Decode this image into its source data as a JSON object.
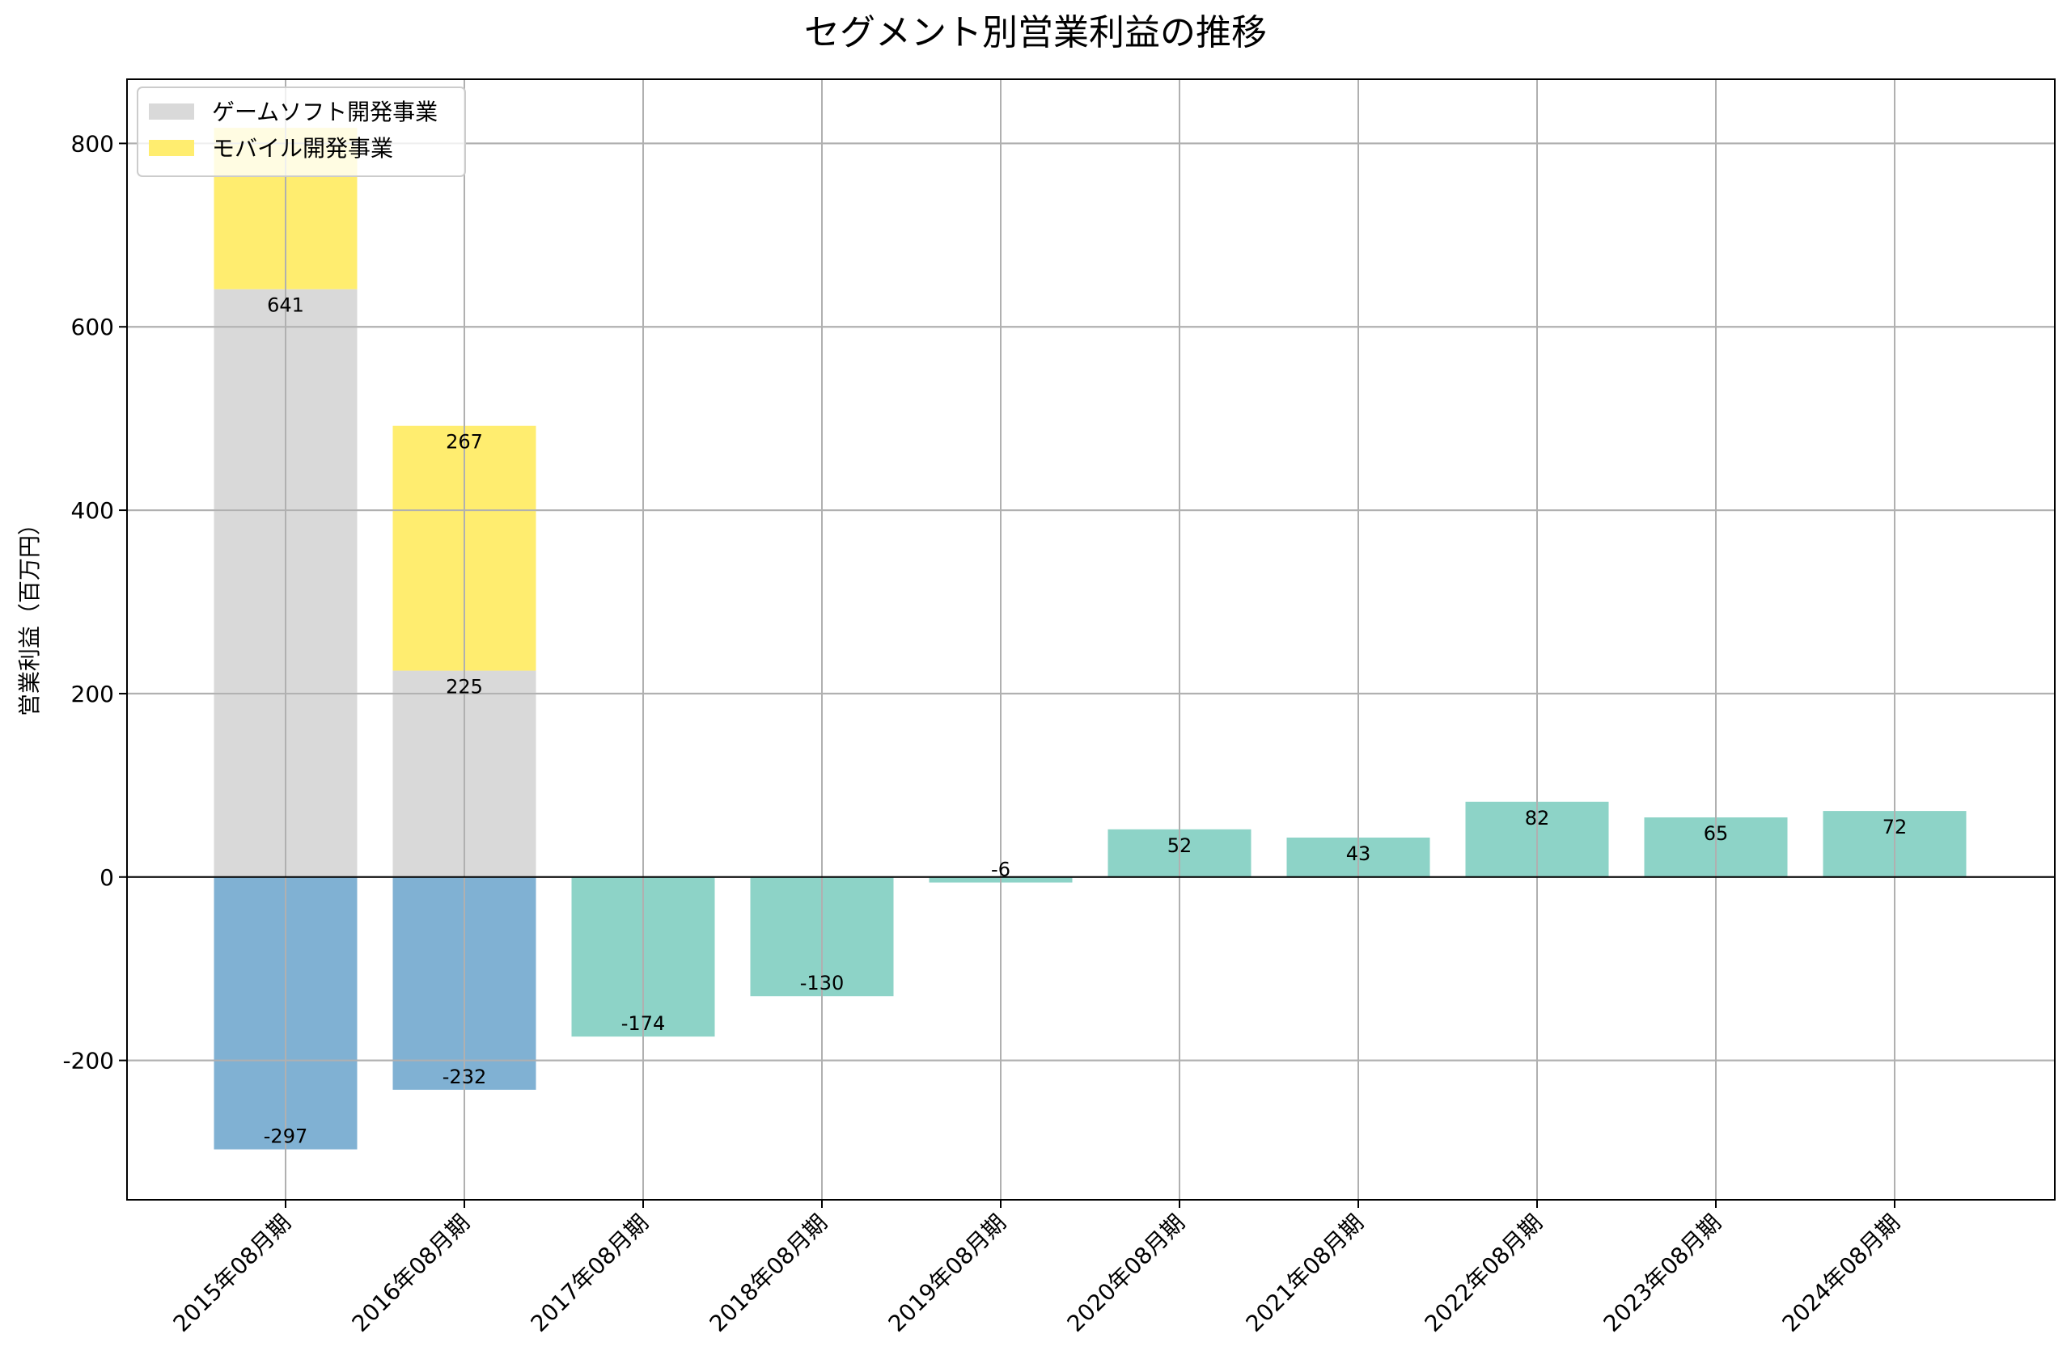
{
  "chart_data": {
    "type": "bar",
    "stacked": true,
    "title": "セグメント別営業利益の推移",
    "xlabel": "",
    "ylabel": "営業利益（百万円）",
    "ylim": [
      -352,
      870
    ],
    "yticks": [
      -200,
      0,
      200,
      400,
      600,
      800
    ],
    "grid": true,
    "legend_position": "top-left",
    "categories": [
      "2015年08月期",
      "2016年08月期",
      "2017年08月期",
      "2018年08月期",
      "2019年08月期",
      "2020年08月期",
      "2021年08月期",
      "2022年08月期",
      "2023年08月期",
      "2024年08月期"
    ],
    "series": [
      {
        "name": "ゲームソフト開発事業",
        "color": "#d9d9d9",
        "values": [
          641,
          225,
          null,
          null,
          null,
          null,
          null,
          null,
          null,
          null
        ],
        "labels": [
          "641",
          "225",
          "",
          "",
          "",
          "",
          "",
          "",
          "",
          ""
        ]
      },
      {
        "name": "モバイル開発事業",
        "color": "#ffed6f",
        "values": [
          176,
          267,
          null,
          null,
          null,
          null,
          null,
          null,
          null,
          null
        ],
        "labels": [
          "",
          "267",
          "",
          "",
          "",
          "",
          "",
          "",
          "",
          ""
        ]
      },
      {
        "name": "",
        "color": "#80b1d3",
        "values": [
          -297,
          -232,
          null,
          null,
          null,
          null,
          null,
          null,
          null,
          null
        ],
        "labels": [
          "-297",
          "-232",
          "",
          "",
          "",
          "",
          "",
          "",
          "",
          ""
        ]
      },
      {
        "name": "",
        "color": "#8dd3c7",
        "values": [
          null,
          null,
          -174,
          -130,
          -6,
          52,
          43,
          82,
          65,
          72
        ],
        "labels": [
          "",
          "",
          "-174",
          "-130",
          "-6",
          "52",
          "43",
          "82",
          "65",
          "72"
        ]
      }
    ]
  }
}
